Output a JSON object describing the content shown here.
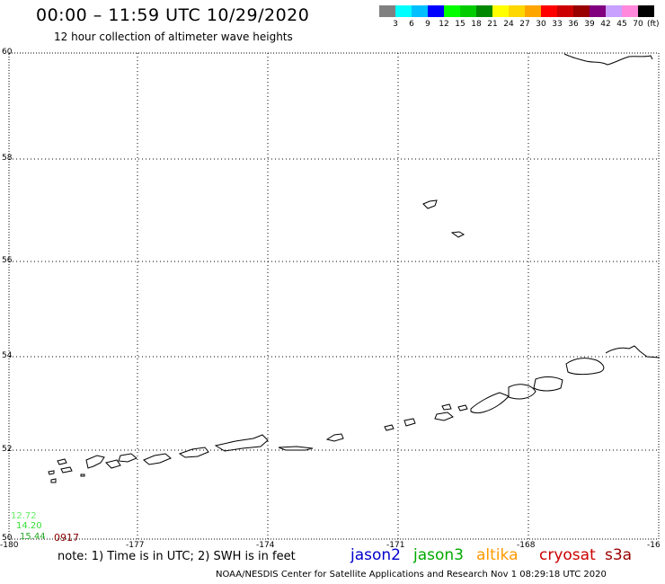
{
  "header": {
    "title": "00:00 – 11:59 UTC 10/29/2020",
    "subtitle": "12 hour collection of altimeter wave heights"
  },
  "colorbar": {
    "colors": [
      "#808080",
      "#00ffff",
      "#00bfff",
      "#0000ff",
      "#00ff00",
      "#00cc00",
      "#008800",
      "#ffff00",
      "#ffd700",
      "#ffa500",
      "#ff0000",
      "#cc0000",
      "#990000",
      "#800080",
      "#c8a0ff",
      "#ff88dd",
      "#000000"
    ],
    "ticks": [
      "3",
      "6",
      "9",
      "12",
      "15",
      "18",
      "21",
      "24",
      "27",
      "30",
      "33",
      "36",
      "39",
      "42",
      "45",
      "70"
    ],
    "unit": "(ft)"
  },
  "map": {
    "lat_labels": [
      "60",
      "58",
      "56",
      "54",
      "52",
      "50"
    ],
    "lon_labels": [
      "-180",
      "-177",
      "-174",
      "-171",
      "-168",
      "-16"
    ],
    "swh_readings": [
      {
        "text": "12.72",
        "color": "#66ee66"
      },
      {
        "text": "14.20",
        "color": "#33dd33"
      },
      {
        "text": "15.44",
        "color": "#22aa22"
      },
      {
        "text": "0917",
        "color": "#880000"
      }
    ]
  },
  "footer": {
    "note": "note:  1) Time is in UTC;  2) SWH is in feet",
    "satellites": [
      {
        "name": "jason2",
        "color": "#0000cc"
      },
      {
        "name": "jason3",
        "color": "#00aa00"
      },
      {
        "name": "altika",
        "color": "#ff9900"
      },
      {
        "name": "cryosat",
        "color": "#cc0000"
      },
      {
        "name": "s3a",
        "color": "#990000"
      }
    ],
    "credit": "NOAA/NESDIS Center for Satellite Applications and Research     Nov  1 08:29:18 UTC 2020"
  }
}
